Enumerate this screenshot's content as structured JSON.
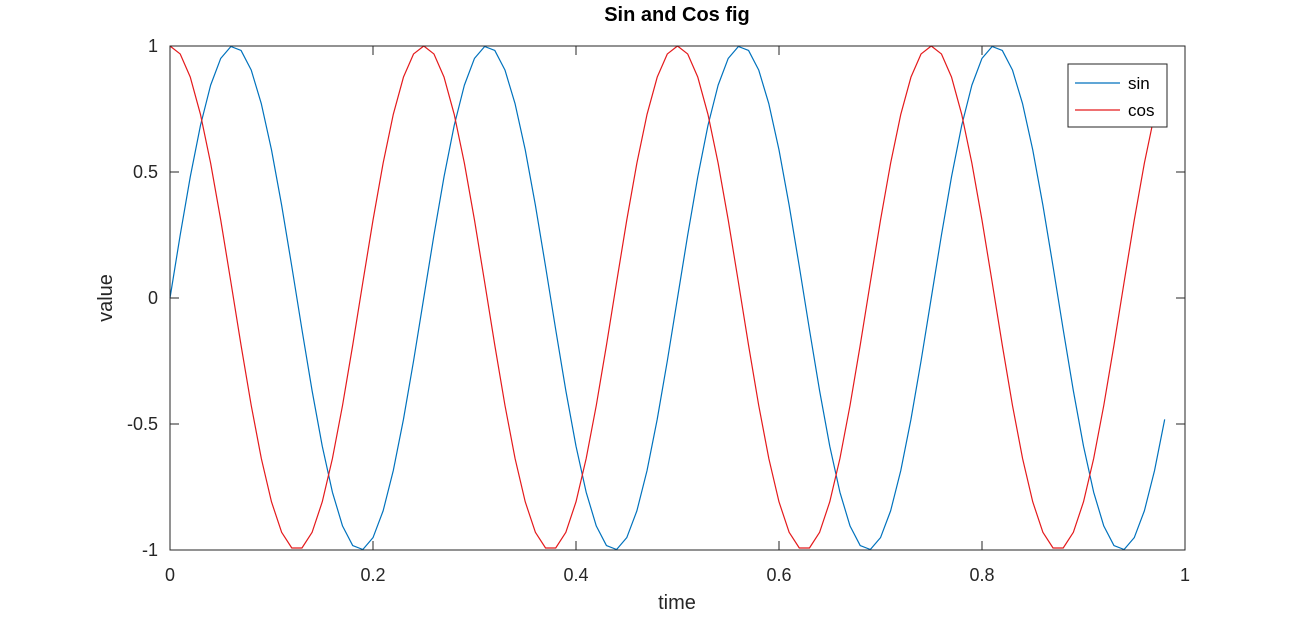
{
  "chart_data": {
    "type": "line",
    "title": "Sin and Cos fig",
    "xlabel": "time",
    "ylabel": "value",
    "xlim": [
      0,
      1
    ],
    "ylim": [
      -1,
      1
    ],
    "xticks": [
      0,
      0.2,
      0.4,
      0.6,
      0.8,
      1
    ],
    "xtick_labels": [
      "0",
      "0.2",
      "0.4",
      "0.6",
      "0.8",
      "1"
    ],
    "yticks": [
      -1,
      -0.5,
      0,
      0.5,
      1
    ],
    "ytick_labels": [
      "-1",
      "-0.5",
      "0",
      "0.5",
      "1"
    ],
    "grid": false,
    "legend_position": "top-right",
    "x": {
      "start": 0,
      "step": 0.01,
      "end": 0.98
    },
    "frequency_hz": 4,
    "series": [
      {
        "name": "sin",
        "function": "sin",
        "color": "#0072BD"
      },
      {
        "name": "cos",
        "function": "cos",
        "color": "#E41A1C"
      }
    ]
  }
}
